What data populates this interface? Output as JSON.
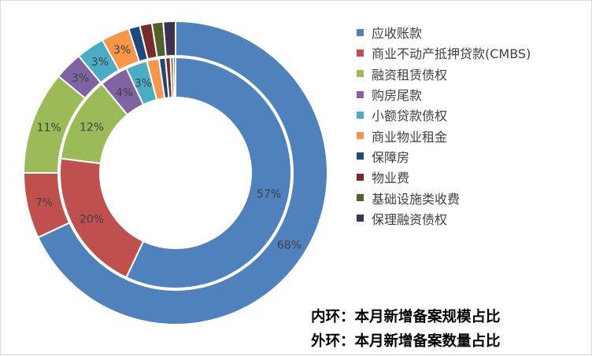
{
  "chart_data": {
    "type": "pie",
    "variant": "double-ring donut",
    "categories": [
      "应收账款",
      "商业不动产抵押贷款(CMBS)",
      "融资租赁债权",
      "购房尾款",
      "小额贷款债权",
      "商业物业租金",
      "保障房",
      "物业费",
      "基础设施类收费",
      "保理融资债权"
    ],
    "colors": [
      "#4f81bd",
      "#c0504d",
      "#9bbb59",
      "#8064a2",
      "#4bacc6",
      "#f79646",
      "#1f497d",
      "#772c2a",
      "#4f6228",
      "#3f3151"
    ],
    "series": [
      {
        "name": "内环：本月新增备案规模占比",
        "ring": "inner",
        "values": [
          57,
          20,
          12,
          4,
          3,
          1.7,
          0.9,
          0.7,
          0.4,
          0.3
        ],
        "labels": [
          "57%",
          "20%",
          "12%",
          "4%",
          "3%",
          "",
          "",
          "",
          "",
          ""
        ]
      },
      {
        "name": "外环：本月新增备案数量占比",
        "ring": "outer",
        "values": [
          68,
          7,
          11,
          3,
          3,
          3,
          1.2,
          1.3,
          1.2,
          1.3
        ],
        "labels": [
          "68%",
          "7%",
          "11%",
          "3%",
          "3%",
          "3%",
          "",
          "",
          "",
          ""
        ]
      }
    ],
    "legend_position": "right"
  },
  "captions": {
    "inner": "内环：本月新增备案规模占比",
    "outer": "外环：本月新增备案数量占比"
  }
}
